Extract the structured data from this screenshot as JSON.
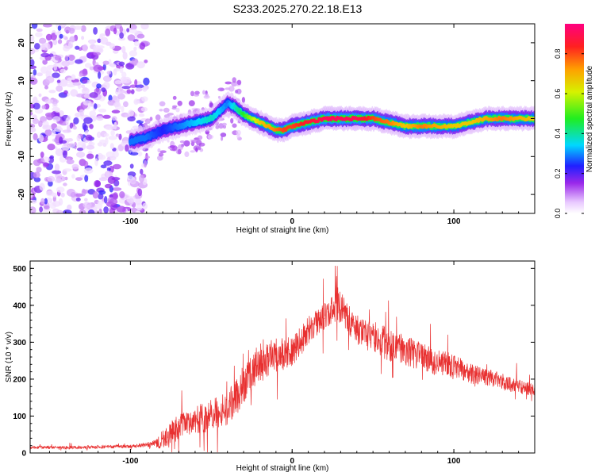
{
  "title": "S233.2025.270.22.18.E13",
  "chart_data": [
    {
      "type": "heatmap",
      "title": "S233.2025.270.22.18.E13",
      "xlabel": "Height of straight line (km)",
      "ylabel": "Frequency (Hz)",
      "xlim": [
        -162,
        150
      ],
      "ylim": [
        -25,
        25
      ],
      "xticks": [
        -100,
        0,
        100
      ],
      "yticks": [
        -20,
        -10,
        0,
        10,
        20
      ],
      "colorbar": {
        "label": "Normalized spectral amplitude",
        "range": [
          0,
          0.95
        ],
        "ticks": [
          0.0,
          0.2,
          0.4,
          0.6,
          0.8
        ]
      },
      "ridge": {
        "x": [
          -100,
          -90,
          -80,
          -70,
          -60,
          -50,
          -45,
          -40,
          -35,
          -30,
          -25,
          -20,
          -15,
          -10,
          -5,
          0,
          10,
          20,
          30,
          40,
          50,
          60,
          70,
          80,
          90,
          100,
          110,
          120,
          130,
          140,
          150
        ],
        "freq": [
          -6,
          -5,
          -3,
          -2,
          -1,
          0,
          2,
          4,
          3,
          1,
          0,
          -1,
          -2,
          -3,
          -3,
          -2,
          -1,
          0,
          0,
          0,
          0,
          -1,
          -2,
          -2,
          -2,
          -2,
          -1,
          0,
          0,
          0,
          0
        ],
        "amplitude": [
          0.3,
          0.3,
          0.25,
          0.3,
          0.35,
          0.4,
          0.35,
          0.3,
          0.4,
          0.5,
          0.6,
          0.7,
          0.75,
          0.8,
          0.85,
          0.85,
          0.9,
          0.95,
          0.95,
          0.95,
          0.85,
          0.8,
          0.7,
          0.8,
          0.75,
          0.7,
          0.7,
          0.75,
          0.8,
          0.75,
          0.7
        ]
      }
    },
    {
      "type": "line",
      "xlabel": "Height of straight line (km)",
      "ylabel": "SNR (10 * v/v)",
      "xlim": [
        -162,
        150
      ],
      "ylim": [
        0,
        520
      ],
      "xticks": [
        -100,
        0,
        100
      ],
      "yticks": [
        0,
        100,
        200,
        300,
        400,
        500
      ],
      "series": [
        {
          "name": "SNR",
          "color": "#e83030",
          "x": [
            -162,
            -150,
            -140,
            -130,
            -120,
            -110,
            -100,
            -90,
            -85,
            -80,
            -75,
            -70,
            -65,
            -60,
            -55,
            -50,
            -45,
            -40,
            -35,
            -30,
            -25,
            -20,
            -15,
            -10,
            -5,
            0,
            5,
            10,
            15,
            20,
            25,
            28,
            30,
            35,
            40,
            45,
            50,
            55,
            60,
            65,
            70,
            75,
            80,
            85,
            90,
            95,
            100,
            105,
            110,
            115,
            120,
            125,
            130,
            135,
            140,
            145,
            150
          ],
          "envelope": [
            15,
            15,
            15,
            15,
            16,
            17,
            18,
            22,
            25,
            35,
            55,
            70,
            80,
            90,
            95,
            100,
            110,
            120,
            150,
            185,
            215,
            235,
            255,
            265,
            270,
            280,
            300,
            330,
            355,
            370,
            385,
            410,
            395,
            360,
            335,
            320,
            315,
            305,
            290,
            285,
            280,
            270,
            260,
            250,
            245,
            240,
            235,
            225,
            215,
            210,
            205,
            200,
            195,
            185,
            180,
            175,
            170
          ],
          "spread": [
            8,
            8,
            8,
            8,
            8,
            9,
            9,
            12,
            20,
            50,
            60,
            70,
            70,
            80,
            85,
            90,
            90,
            95,
            100,
            110,
            100,
            95,
            95,
            90,
            90,
            90,
            80,
            80,
            75,
            70,
            80,
            100,
            90,
            80,
            80,
            80,
            85,
            90,
            90,
            85,
            85,
            85,
            80,
            80,
            75,
            70,
            65,
            60,
            55,
            50,
            50,
            45,
            45,
            40,
            40,
            35,
            30
          ]
        }
      ]
    }
  ]
}
